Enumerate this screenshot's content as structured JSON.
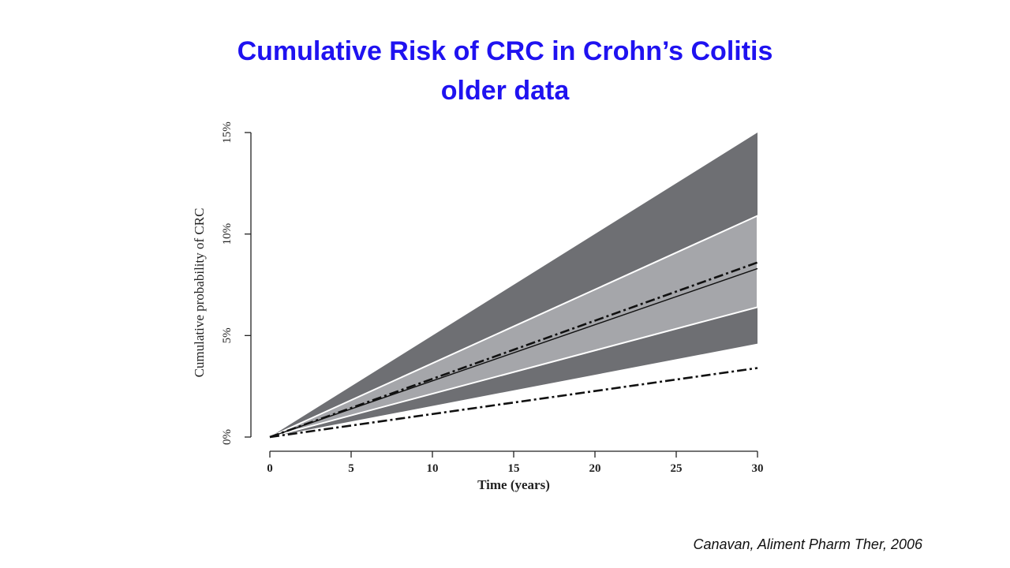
{
  "slide": {
    "title_line1": "Cumulative Risk of CRC in Crohn’s Colitis",
    "title_line2": "older data",
    "citation": "Canavan, Aliment Pharm Ther, 2006",
    "title_color": "#1f12f0"
  },
  "chart_data": {
    "type": "line",
    "xlabel": "Time (years)",
    "ylabel": "Cumulative probability of CRC",
    "xlim": [
      0,
      30
    ],
    "ylim": [
      0,
      15
    ],
    "x_ticks": [
      0,
      5,
      10,
      15,
      20,
      25,
      30
    ],
    "x_tick_labels": [
      "0",
      "5",
      "10",
      "15",
      "20",
      "25",
      "30"
    ],
    "y_ticks": [
      0,
      5,
      10,
      15
    ],
    "y_tick_labels": [
      "0%",
      "5%",
      "10%",
      "15%"
    ],
    "grid": false,
    "bands": [
      {
        "lower": [
          [
            0,
            0
          ],
          [
            30,
            4.6
          ]
        ],
        "upper": [
          [
            0,
            0
          ],
          [
            30,
            15.0
          ]
        ],
        "color": "#6e6f73"
      },
      {
        "lower": [
          [
            0,
            0
          ],
          [
            30,
            6.4
          ]
        ],
        "upper": [
          [
            0,
            0
          ],
          [
            30,
            10.9
          ]
        ],
        "color": "#a5a6aa"
      }
    ],
    "series": [
      {
        "style": "solid",
        "color": "#111111",
        "x": [
          0,
          30
        ],
        "y": [
          0,
          8.3
        ]
      },
      {
        "style": "dash-dot",
        "color": "#111111",
        "x": [
          0,
          30
        ],
        "y": [
          0,
          8.6
        ]
      },
      {
        "style": "dash-dot",
        "color": "#111111",
        "x": [
          0,
          30
        ],
        "y": [
          0,
          3.4
        ]
      }
    ]
  }
}
